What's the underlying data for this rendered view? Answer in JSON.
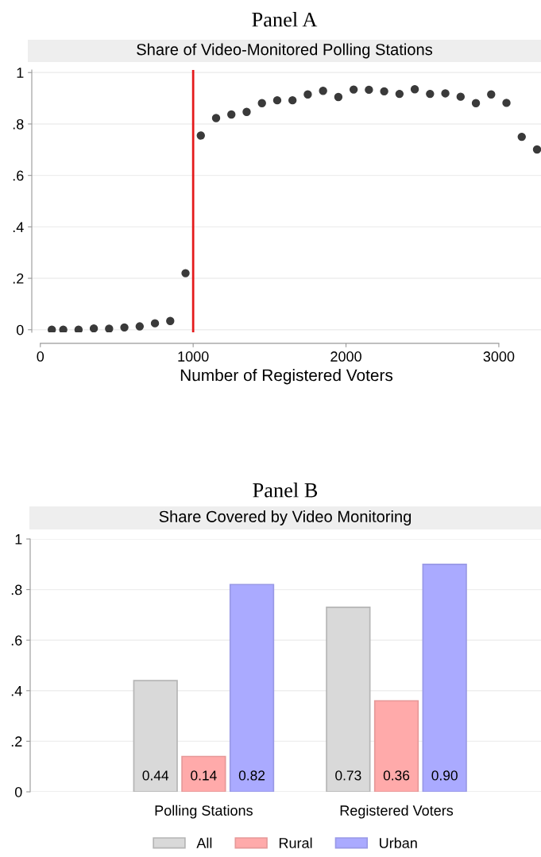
{
  "chart_data": [
    {
      "type": "scatter",
      "title": "Panel A",
      "subtitle": "Share of Video-Monitored Polling Stations",
      "xlabel": "Number of Registered Voters",
      "x": [
        75,
        150,
        250,
        350,
        450,
        550,
        650,
        750,
        850,
        950,
        1050,
        1150,
        1250,
        1350,
        1450,
        1550,
        1650,
        1750,
        1850,
        1950,
        2050,
        2150,
        2250,
        2350,
        2450,
        2550,
        2650,
        2750,
        2850,
        2950,
        3050,
        3150,
        3250
      ],
      "series": [
        {
          "color": "#3a3a3a",
          "values": [
            0,
            0,
            0,
            0.005,
            0.004,
            0.009,
            0.013,
            0.025,
            0.034,
            0.22,
            0.755,
            0.823,
            0.837,
            0.847,
            0.881,
            0.892,
            0.892,
            0.915,
            0.929,
            0.905,
            0.934,
            0.933,
            0.927,
            0.917,
            0.935,
            0.917,
            0.919,
            0.906,
            0.881,
            0.915,
            0.882,
            0.75,
            0.701
          ]
        }
      ],
      "marker": "circle",
      "xlim": [
        -56,
        3276
      ],
      "xticks": [
        0,
        1000,
        2000,
        3000
      ],
      "ylim": [
        -0.01,
        1.01
      ],
      "yticks": [
        0,
        {
          "value": 0.2,
          "label": ".2"
        },
        {
          "value": 0.4,
          "label": ".4"
        },
        {
          "value": 0.6,
          "label": ".6"
        },
        {
          "value": 0.8,
          "label": ".8"
        },
        1
      ],
      "ref_lines": [
        {
          "axis": "x",
          "value": 1000,
          "color": "#e41a1c"
        }
      ],
      "grid": "y"
    },
    {
      "type": "bar",
      "title": "Panel B",
      "subtitle": "Share Covered by Video Monitoring",
      "categories": [
        "Polling Stations",
        "Registered Voters"
      ],
      "series": [
        {
          "name": "All",
          "color": "#d9d9d9",
          "values": [
            0.44,
            0.73
          ],
          "value_labels": [
            "0.44",
            "0.73"
          ]
        },
        {
          "name": "Rural",
          "color": "#ffaaaa",
          "values": [
            0.14,
            0.36
          ],
          "value_labels": [
            "0.14",
            "0.36"
          ]
        },
        {
          "name": "Urban",
          "color": "#aaaaff",
          "values": [
            0.82,
            0.9
          ],
          "value_labels": [
            "0.82",
            "0.90"
          ]
        }
      ],
      "ylim": [
        0,
        1
      ],
      "yticks": [
        0,
        {
          "value": 0.2,
          "label": ".2"
        },
        {
          "value": 0.4,
          "label": ".4"
        },
        {
          "value": 0.6,
          "label": ".6"
        },
        {
          "value": 0.8,
          "label": ".8"
        },
        1
      ],
      "grid": "y",
      "legend": "bottom"
    }
  ]
}
